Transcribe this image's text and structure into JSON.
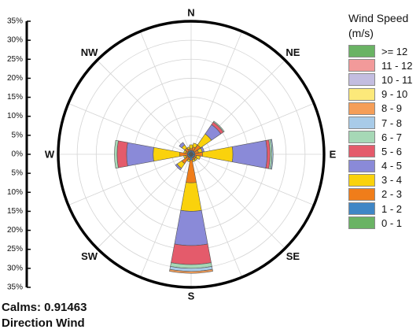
{
  "chart_data": {
    "type": "wind-rose",
    "directions": [
      "N",
      "NE",
      "E",
      "SE",
      "S",
      "SW",
      "W",
      "NW"
    ],
    "radial_axis": {
      "ticks_upper": [
        "35%",
        "30%",
        "25%",
        "20%",
        "15%",
        "10%",
        "5%",
        "0%"
      ],
      "ticks_lower": [
        "5%",
        "10%",
        "15%",
        "20%",
        "25%",
        "30%",
        "35%"
      ],
      "range": [
        0,
        35
      ],
      "grid": true
    },
    "legend": {
      "title": "Wind Speed (m/s)",
      "placement": "right"
    },
    "speed_bins": [
      {
        "label": ">= 12",
        "color": "#6ab364"
      },
      {
        "label": "11 - 12",
        "color": "#f29a9a"
      },
      {
        "label": "10 - 11",
        "color": "#c3bde0"
      },
      {
        "label": "9 - 10",
        "color": "#fce97a"
      },
      {
        "label": "8 - 9",
        "color": "#f59e58"
      },
      {
        "label": "7 - 8",
        "color": "#a8cbe8"
      },
      {
        "label": "6 - 7",
        "color": "#a6d8b6"
      },
      {
        "label": "5 - 6",
        "color": "#e45b6b"
      },
      {
        "label": "4 - 5",
        "color": "#8a8ad8"
      },
      {
        "label": "3 - 4",
        "color": "#fad20c"
      },
      {
        "label": "2 - 3",
        "color": "#f07d1a"
      },
      {
        "label": "1 - 2",
        "color": "#3f86c6"
      },
      {
        "label": "0 - 1",
        "color": "#6ab364"
      }
    ],
    "sectors": [
      {
        "direction": "N",
        "cumulative": [
          0.4,
          1.0,
          1.5,
          2.5
        ]
      },
      {
        "direction": "NNE",
        "cumulative": [
          0.5,
          1.0,
          2.0,
          3.0
        ]
      },
      {
        "direction": "NE",
        "cumulative": [
          0.5,
          1.0,
          3.0,
          6.5,
          9.5,
          10.3,
          10.6
        ]
      },
      {
        "direction": "ENE",
        "cumulative": [
          0.5,
          1.0,
          2.0,
          3.0,
          3.5
        ]
      },
      {
        "direction": "E",
        "cumulative": [
          0.5,
          1.0,
          3.0,
          11.0,
          20.0,
          20.8,
          21.3,
          21.6
        ]
      },
      {
        "direction": "ESE",
        "cumulative": [
          0.5,
          1.0,
          1.5,
          2.5
        ]
      },
      {
        "direction": "SE",
        "cumulative": [
          0.5,
          1.0,
          1.5,
          2.0
        ]
      },
      {
        "direction": "SSE",
        "cumulative": [
          0.5,
          1.0,
          1.5,
          2.0
        ]
      },
      {
        "direction": "S",
        "cumulative": [
          0.5,
          1.5,
          7.5,
          15.0,
          24.0,
          29.0,
          30.0,
          30.8,
          31.3
        ]
      },
      {
        "direction": "SSW",
        "cumulative": [
          0.5,
          1.0,
          1.5,
          2.0
        ]
      },
      {
        "direction": "SW",
        "cumulative": [
          0.5,
          1.0,
          3.0,
          4.5,
          5.0
        ]
      },
      {
        "direction": "WSW",
        "cumulative": [
          0.5,
          1.0,
          1.5,
          2.0
        ]
      },
      {
        "direction": "W",
        "cumulative": [
          0.5,
          1.0,
          3.0,
          10.0,
          17.0,
          19.5,
          20.2
        ]
      },
      {
        "direction": "WNW",
        "cumulative": [
          0.5,
          1.0,
          1.5,
          2.0
        ]
      },
      {
        "direction": "NW",
        "cumulative": [
          0.5,
          1.0,
          2.0,
          3.0,
          3.8
        ]
      },
      {
        "direction": "NNW",
        "cumulative": [
          0.5,
          1.0,
          1.5,
          2.0
        ]
      }
    ],
    "calms_text": "Calms: 0.91463",
    "subtitle": "Direction Wind"
  }
}
